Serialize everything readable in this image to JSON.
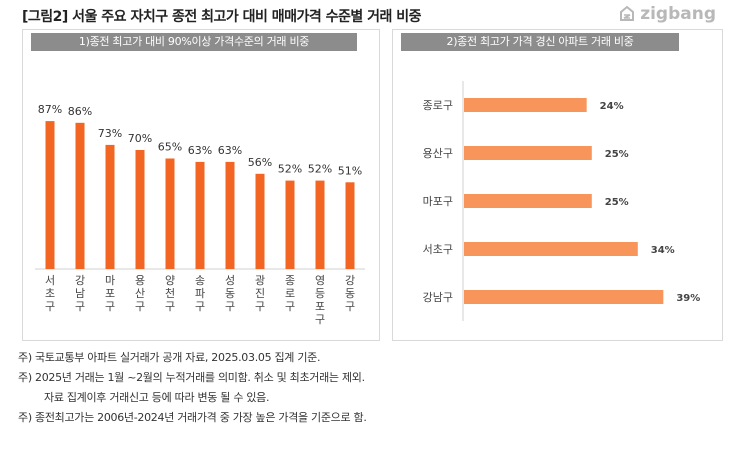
{
  "title": "[그림2] 서울 주요 자치구  종전 최고가 대비 매매가격 수준별 거래 비중",
  "logo": {
    "text": "zigbang",
    "icon": "zigbang-logo-icon"
  },
  "colors": {
    "bar_left": "#F26522",
    "bar_right": "#F7955A",
    "panel_header": "#8C8C8C"
  },
  "chart_data": [
    {
      "type": "bar",
      "title": "1)종전 최고가 대비 90%이상 가격수준의 거래 비중",
      "categories": [
        "서초구",
        "강남구",
        "마포구",
        "용산구",
        "양천구",
        "송파구",
        "성동구",
        "광진구",
        "종로구",
        "영등포구",
        "강동구"
      ],
      "values": [
        87,
        86,
        73,
        70,
        65,
        63,
        63,
        56,
        52,
        52,
        51
      ],
      "value_labels": [
        "87%",
        "86%",
        "73%",
        "70%",
        "65%",
        "63%",
        "63%",
        "56%",
        "52%",
        "52%",
        "51%"
      ],
      "ylim": [
        0,
        100
      ],
      "xlabel": "",
      "ylabel": "",
      "grid": false
    },
    {
      "type": "bar",
      "orientation": "horizontal",
      "title": "2)종전 최고가 가격 경신 아파트 거래 비중",
      "categories": [
        "종로구",
        "용산구",
        "마포구",
        "서초구",
        "강남구"
      ],
      "values": [
        24,
        25,
        25,
        34,
        39
      ],
      "value_labels": [
        "24%",
        "25%",
        "25%",
        "34%",
        "39%"
      ],
      "xlim": [
        0,
        45
      ],
      "xlabel": "",
      "ylabel": "",
      "grid": false
    }
  ],
  "notes": [
    "주) 국토교통부 아파트 실거래가 공개 자료, 2025.03.05 집계 기준.",
    "주) 2025년 거래는 1월 ~2월의 누적거래를 의미함. 취소 및 최초거래는 제외.",
    "자료 집계이후 거래신고 등에 따라 변동 될 수 있음.",
    "주) 종전최고가는 2006년-2024년 거래가격 중 가장 높은 가격을 기준으로 함."
  ]
}
